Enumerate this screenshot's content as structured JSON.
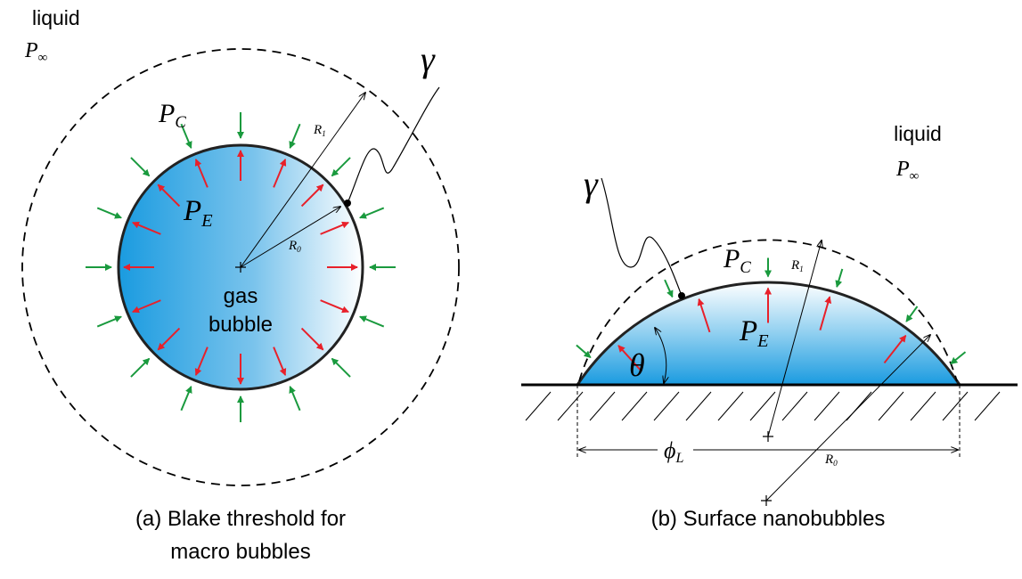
{
  "panel_a": {
    "liquid_label": "liquid",
    "pressure_far": {
      "symbol": "P",
      "sub": "∞"
    },
    "gamma": "γ",
    "pressure_c": {
      "symbol": "P",
      "sub": "C"
    },
    "radius_1": {
      "symbol": "R",
      "sub": "1"
    },
    "pressure_e": {
      "symbol": "P",
      "sub": "E"
    },
    "radius_0": {
      "symbol": "R",
      "sub": "0"
    },
    "bubble_label": [
      "gas",
      "bubble"
    ],
    "caption": [
      "(a) Blake threshold for",
      "macro bubbles"
    ]
  },
  "panel_b": {
    "liquid_label": "liquid",
    "pressure_far": {
      "symbol": "P",
      "sub": "∞"
    },
    "gamma": "γ",
    "pressure_c": {
      "symbol": "P",
      "sub": "C"
    },
    "radius_1": {
      "symbol": "R",
      "sub": "1"
    },
    "pressure_e": {
      "symbol": "P",
      "sub": "E"
    },
    "angle": "θ",
    "radius_0": {
      "symbol": "R",
      "sub": "0"
    },
    "diameter": {
      "symbol": "ϕ",
      "sub": "L"
    },
    "caption": "(b) Surface nanobubbles"
  }
}
